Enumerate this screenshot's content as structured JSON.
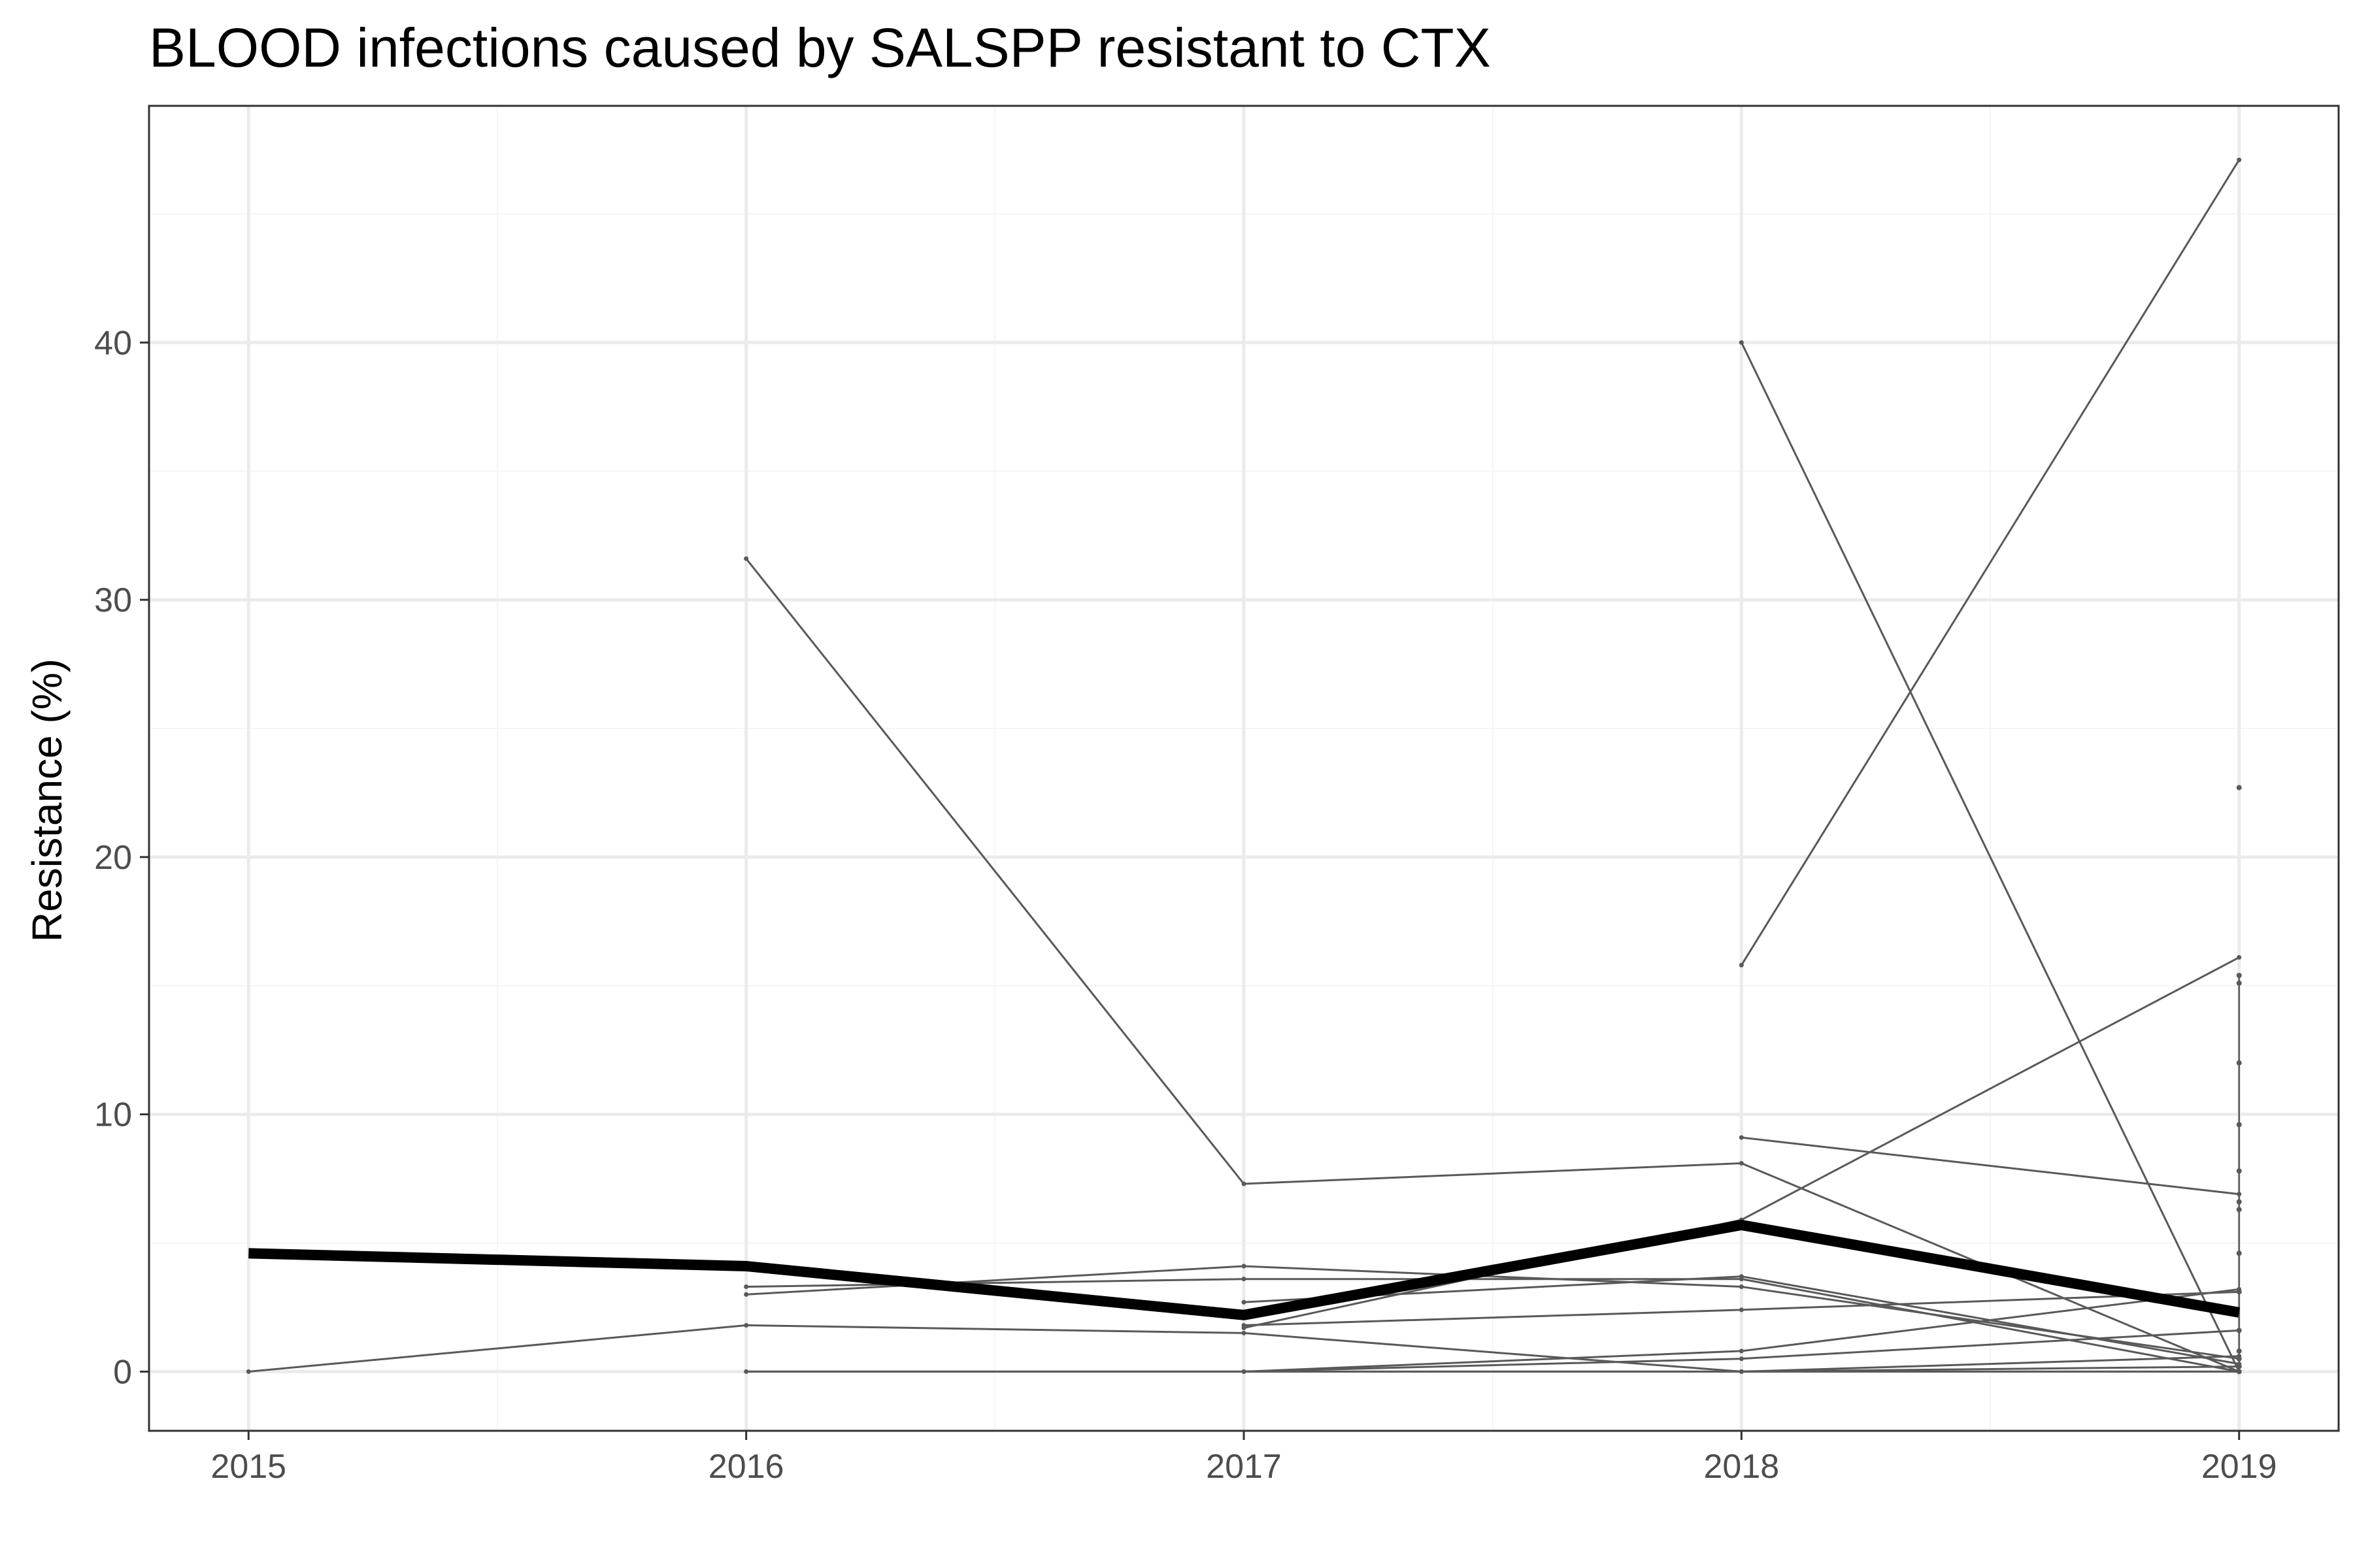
{
  "chart_data": {
    "type": "line",
    "title": "BLOOD infections caused by SALSPP resistant to CTX",
    "xlabel": "",
    "ylabel": "Resistance (%)",
    "xlim": [
      2014.8,
      2019.2
    ],
    "ylim": [
      -2.3,
      49.2
    ],
    "x_ticks": [
      2015,
      2016,
      2017,
      2018,
      2019
    ],
    "y_ticks": [
      0,
      10,
      20,
      30,
      40
    ],
    "grid": true,
    "legend": "none",
    "colors": {
      "series": "#595959",
      "overall": "#000000",
      "grid_major": "#ebebeb",
      "grid_minor": "#f5f5f5",
      "panel_border": "#333333"
    },
    "overall_series": {
      "x": [
        2015,
        2016,
        2017,
        2018,
        2019
      ],
      "y": [
        4.6,
        4.1,
        2.2,
        5.7,
        2.3
      ]
    },
    "series": [
      {
        "x": [
          2015,
          2016,
          2017,
          2018,
          2019
        ],
        "y": [
          0,
          1.8,
          1.5,
          0,
          0
        ]
      },
      {
        "x": [
          2016,
          2017,
          2018,
          2019
        ],
        "y": [
          31.6,
          7.3,
          8.1,
          0
        ]
      },
      {
        "x": [
          2018,
          2019
        ],
        "y": [
          40.0,
          0
        ]
      },
      {
        "x": [
          2018,
          2019
        ],
        "y": [
          15.8,
          47.1
        ]
      },
      {
        "x": [
          2018,
          2019
        ],
        "y": [
          9.1,
          6.9
        ]
      },
      {
        "x": [
          2017,
          2018,
          2019
        ],
        "y": [
          1.7,
          5.9,
          16.1
        ]
      },
      {
        "x": [
          2016,
          2017,
          2018,
          2019
        ],
        "y": [
          3.3,
          3.6,
          3.6,
          0
        ]
      },
      {
        "x": [
          2016,
          2017,
          2018,
          2019
        ],
        "y": [
          3.0,
          4.1,
          3.3,
          0.5
        ]
      },
      {
        "x": [
          2017,
          2018,
          2019
        ],
        "y": [
          2.7,
          3.7,
          0.3
        ]
      },
      {
        "x": [
          2017,
          2018,
          2019
        ],
        "y": [
          1.8,
          2.4,
          3.1
        ]
      },
      {
        "x": [
          2016,
          2017,
          2018,
          2019
        ],
        "y": [
          0,
          0,
          0.8,
          3.2
        ]
      },
      {
        "x": [
          2017,
          2018,
          2019
        ],
        "y": [
          0,
          0.5,
          1.6
        ]
      },
      {
        "x": [
          2017,
          2018,
          2019
        ],
        "y": [
          0,
          0,
          0.6
        ]
      },
      {
        "x": [
          2018,
          2019
        ],
        "y": [
          0,
          0.2
        ]
      }
    ],
    "points_2019": [
      22.7,
      15.4,
      15.1,
      12.0,
      9.6,
      7.8,
      6.6,
      6.3,
      4.6,
      3.1,
      1.6,
      0.8,
      0.5,
      0.2,
      0
    ]
  }
}
